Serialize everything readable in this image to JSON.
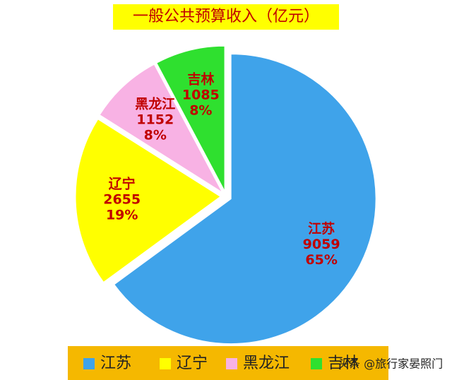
{
  "chart_data": {
    "type": "pie",
    "title": "一般公共预算收入（亿元）",
    "categories": [
      "江苏",
      "辽宁",
      "黑龙江",
      "吉林"
    ],
    "values": [
      9059,
      2655,
      1152,
      1085
    ],
    "percent_labels": [
      "65%",
      "19%",
      "8%",
      "8%"
    ],
    "colors": [
      "#3fa3ea",
      "#ffff00",
      "#f8b2e4",
      "#2fe02f"
    ],
    "legend": "bottom"
  },
  "watermark": "头条 @旅行家晏照门"
}
